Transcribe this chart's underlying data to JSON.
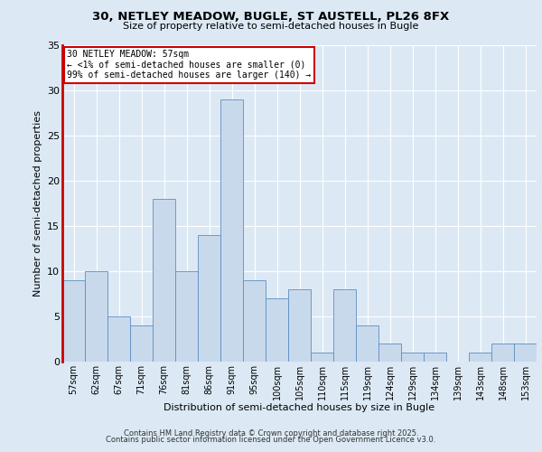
{
  "title_line1": "30, NETLEY MEADOW, BUGLE, ST AUSTELL, PL26 8FX",
  "title_line2": "Size of property relative to semi-detached houses in Bugle",
  "xlabel": "Distribution of semi-detached houses by size in Bugle",
  "ylabel": "Number of semi-detached properties",
  "categories": [
    "57sqm",
    "62sqm",
    "67sqm",
    "71sqm",
    "76sqm",
    "81sqm",
    "86sqm",
    "91sqm",
    "95sqm",
    "100sqm",
    "105sqm",
    "110sqm",
    "115sqm",
    "119sqm",
    "124sqm",
    "129sqm",
    "134sqm",
    "139sqm",
    "143sqm",
    "148sqm",
    "153sqm"
  ],
  "values": [
    9,
    10,
    5,
    4,
    18,
    10,
    14,
    29,
    9,
    7,
    8,
    1,
    8,
    4,
    2,
    1,
    1,
    0,
    1,
    2,
    2
  ],
  "bar_color": "#c9d9ec",
  "bar_edge_color": "#5b8fc0",
  "annotation_box_color": "#ffffff",
  "annotation_border_color": "#cc0000",
  "annotation_text_line1": "30 NETLEY MEADOW: 57sqm",
  "annotation_text_line2": "← <1% of semi-detached houses are smaller (0)",
  "annotation_text_line3": "99% of semi-detached houses are larger (140) →",
  "bg_color": "#dce9f5",
  "plot_bg_color": "#dce9f5",
  "grid_color": "#ffffff",
  "red_line_color": "#cc0000",
  "ylim": [
    0,
    35
  ],
  "yticks": [
    0,
    5,
    10,
    15,
    20,
    25,
    30,
    35
  ],
  "footer_line1": "Contains HM Land Registry data © Crown copyright and database right 2025.",
  "footer_line2": "Contains public sector information licensed under the Open Government Licence v3.0."
}
